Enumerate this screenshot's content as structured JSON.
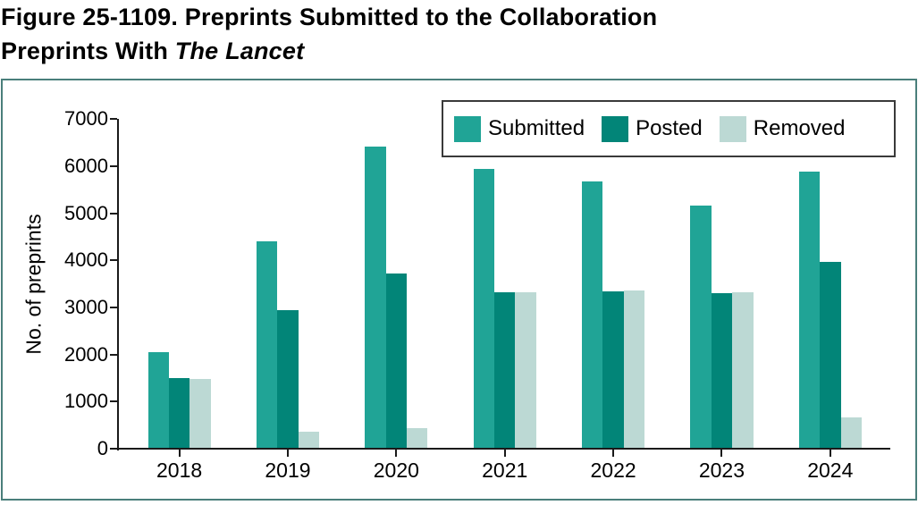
{
  "title": {
    "line1": "Figure 25-1109. Preprints Submitted to the Collaboration",
    "line2_prefix": "Preprints With ",
    "line2_italic": "The Lancet"
  },
  "chart_data": {
    "type": "bar",
    "title": "Figure 25-1109. Preprints Submitted to the Collaboration Preprints With The Lancet",
    "categories": [
      "2018",
      "2019",
      "2020",
      "2021",
      "2022",
      "2023",
      "2024"
    ],
    "series": [
      {
        "name": "Submitted",
        "color": "#20A496",
        "values": [
          2040,
          4380,
          6400,
          5930,
          5650,
          5140,
          5870
        ]
      },
      {
        "name": "Posted",
        "color": "#028578",
        "values": [
          1490,
          2920,
          3710,
          3300,
          3330,
          3290,
          3940
        ]
      },
      {
        "name": "Removed",
        "color": "#BCD9D4",
        "values": [
          1470,
          350,
          420,
          3300,
          3340,
          3300,
          640
        ]
      }
    ],
    "xlabel": "",
    "ylabel": "No. of preprints",
    "ylim": [
      0,
      7000
    ],
    "yticks": [
      0,
      1000,
      2000,
      3000,
      4000,
      5000,
      6000,
      7000
    ],
    "legend_position": "top-right",
    "grid": false
  },
  "colors": {
    "frame_border": "#4A7F7B",
    "legend_border": "#3A3A3A",
    "axis": "#1A1A1A",
    "text": "#000000"
  }
}
